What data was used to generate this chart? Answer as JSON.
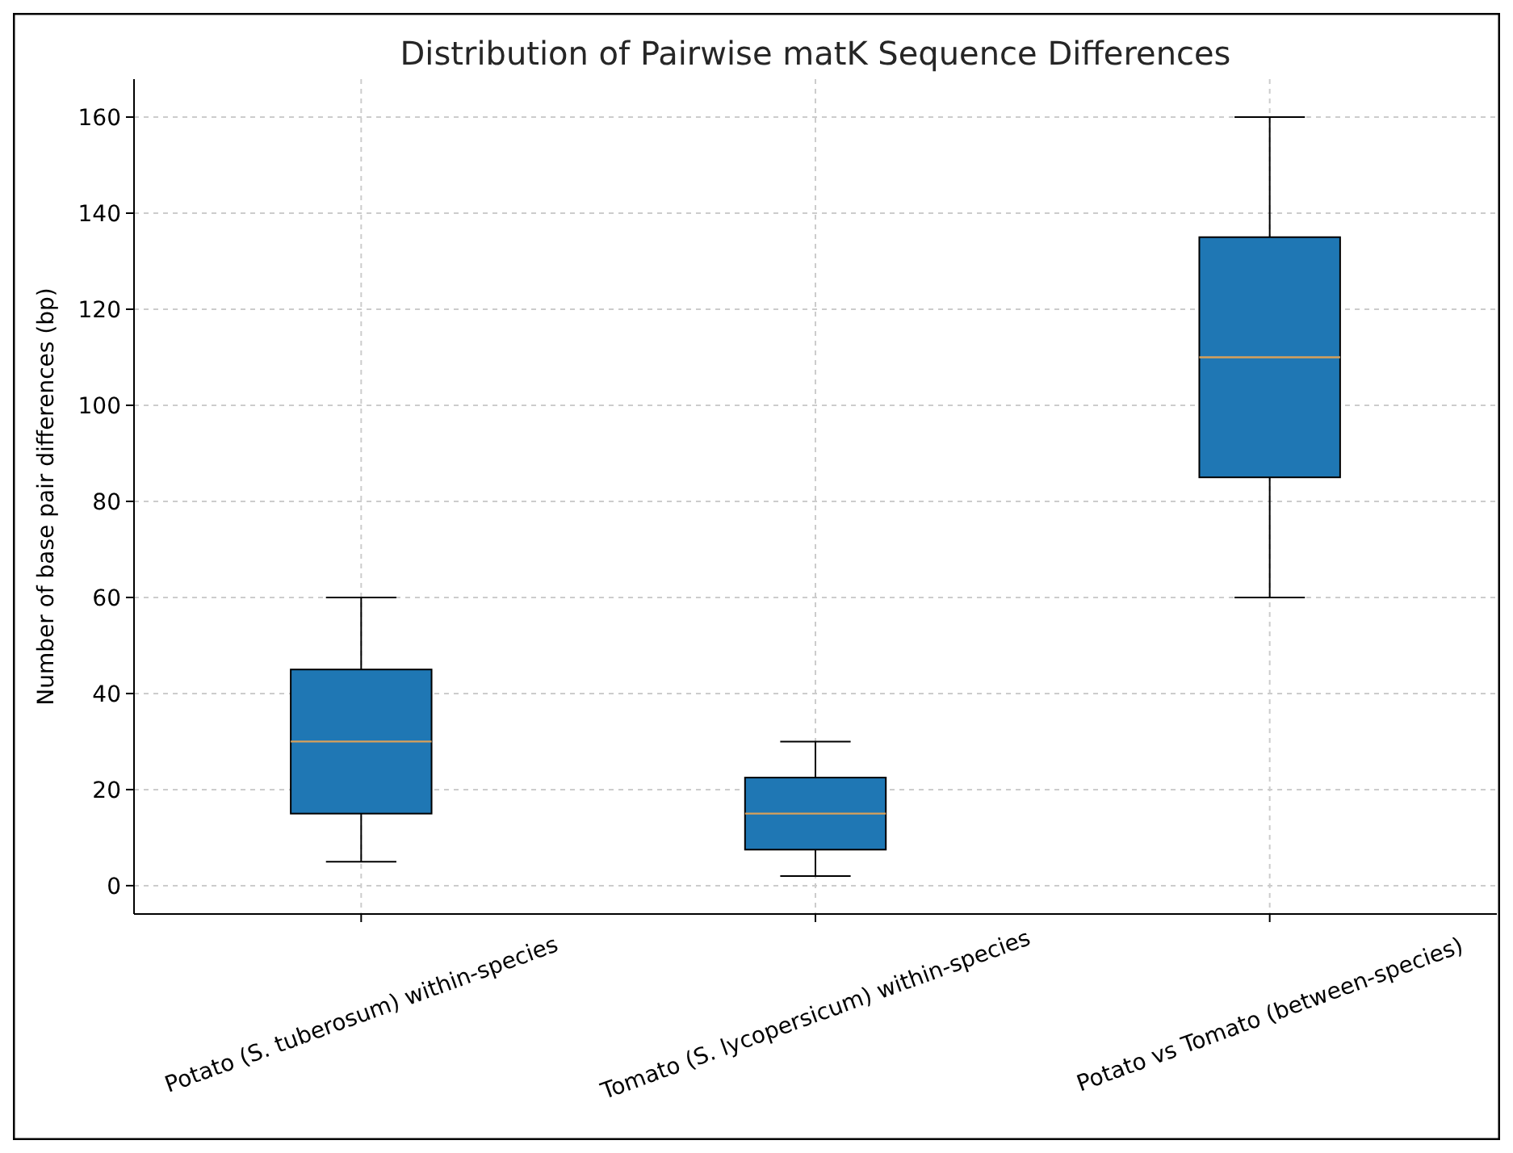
{
  "chart_data": {
    "type": "box",
    "title": "Distribution of Pairwise matK Sequence Differences",
    "ylabel": "Number of base pair differences (bp)",
    "categories": [
      "Potato (S. tuberosum) within-species",
      "Tomato (S. lycopersicum) within-species",
      "Potato vs Tomato (between-species)"
    ],
    "boxes": [
      {
        "low": 5,
        "q1": 15,
        "median": 30,
        "q3": 45,
        "high": 60
      },
      {
        "low": 2,
        "q1": 7.5,
        "median": 15,
        "q3": 22.5,
        "high": 30
      },
      {
        "low": 60,
        "q1": 85,
        "median": 110,
        "q3": 135,
        "high": 160
      }
    ],
    "color": "#1f77b4",
    "ylim": [
      -5.9,
      167.9
    ],
    "yticks": [
      0,
      20,
      40,
      60,
      80,
      100,
      120,
      140,
      160
    ],
    "grid": true
  }
}
